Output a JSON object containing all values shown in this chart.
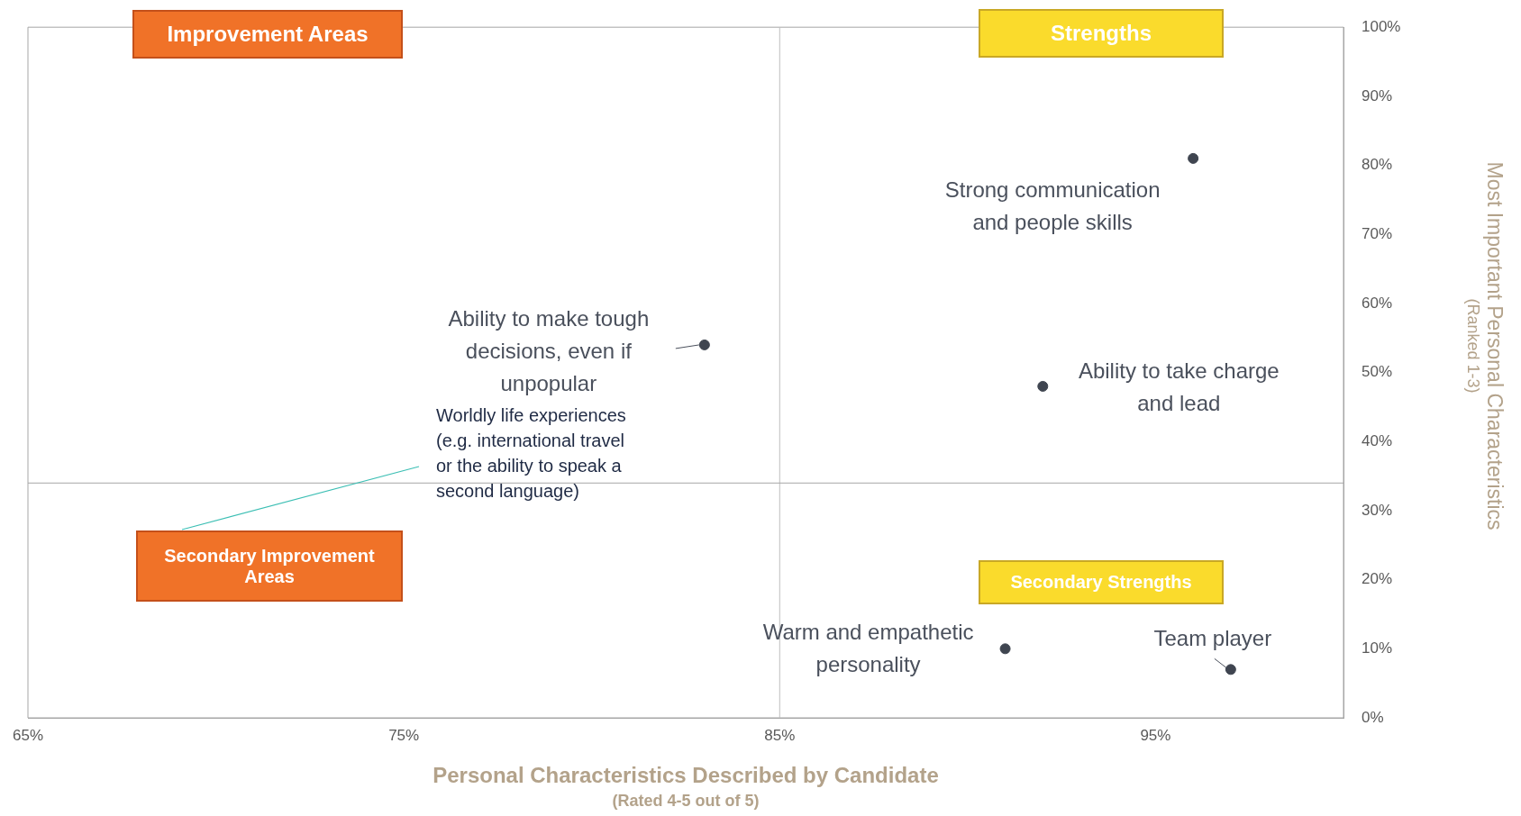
{
  "chart_data": {
    "type": "scatter",
    "x": [
      96,
      83,
      92,
      91,
      97,
      null
    ],
    "xlabel": "Personal Characteristics Described by Candidate\n(Rated 4-5 out of 5)",
    "ylabel": "Most Important Personal Characteristics\n(Ranked 1-3)",
    "series": [
      {
        "color": "#3f4550",
        "values": [
          81,
          54,
          48,
          10,
          7,
          null
        ]
      }
    ],
    "xlim": [
      65,
      100
    ],
    "xticks": [
      {
        "value": 65,
        "label": "65%"
      },
      {
        "value": 75,
        "label": "75%"
      },
      {
        "value": 85,
        "label": "85%"
      },
      {
        "value": 95,
        "label": "95%"
      }
    ],
    "ylim": [
      0,
      100
    ],
    "yticks": [
      {
        "value": 0,
        "label": "0%"
      },
      {
        "value": 10,
        "label": "10%"
      },
      {
        "value": 20,
        "label": "20%"
      },
      {
        "value": 30,
        "label": "30%"
      },
      {
        "value": 40,
        "label": "40%"
      },
      {
        "value": 50,
        "label": "50%"
      },
      {
        "value": 60,
        "label": "60%"
      },
      {
        "value": 70,
        "label": "70%"
      },
      {
        "value": 80,
        "label": "80%"
      },
      {
        "value": 90,
        "label": "90%"
      },
      {
        "value": 100,
        "label": "100%"
      }
    ],
    "ref_lines": [
      {
        "axis": "x",
        "value": 85,
        "color": "#bfbfbf"
      },
      {
        "axis": "y",
        "value": 34,
        "color": "#a6a6a6"
      }
    ],
    "grid": false,
    "legend": false,
    "marker": "circle",
    "annotations": [
      "Improvement Areas",
      "Strengths",
      "Secondary Improvement Areas",
      "Secondary Strengths",
      {
        "text": "Strong communication and people skills",
        "x": 96,
        "y": 81
      },
      {
        "text": "Ability to make tough decisions, even if unpopular",
        "x": 83,
        "y": 54
      },
      {
        "text": "Ability to take charge and lead",
        "x": 92,
        "y": 48
      },
      {
        "text": "Warm and empathetic personality",
        "x": 91,
        "y": 10
      },
      {
        "text": "Team player",
        "x": 97,
        "y": 7
      },
      "Worldly life experiences (e.g. international travel or the ability to speak a second language)"
    ]
  }
}
